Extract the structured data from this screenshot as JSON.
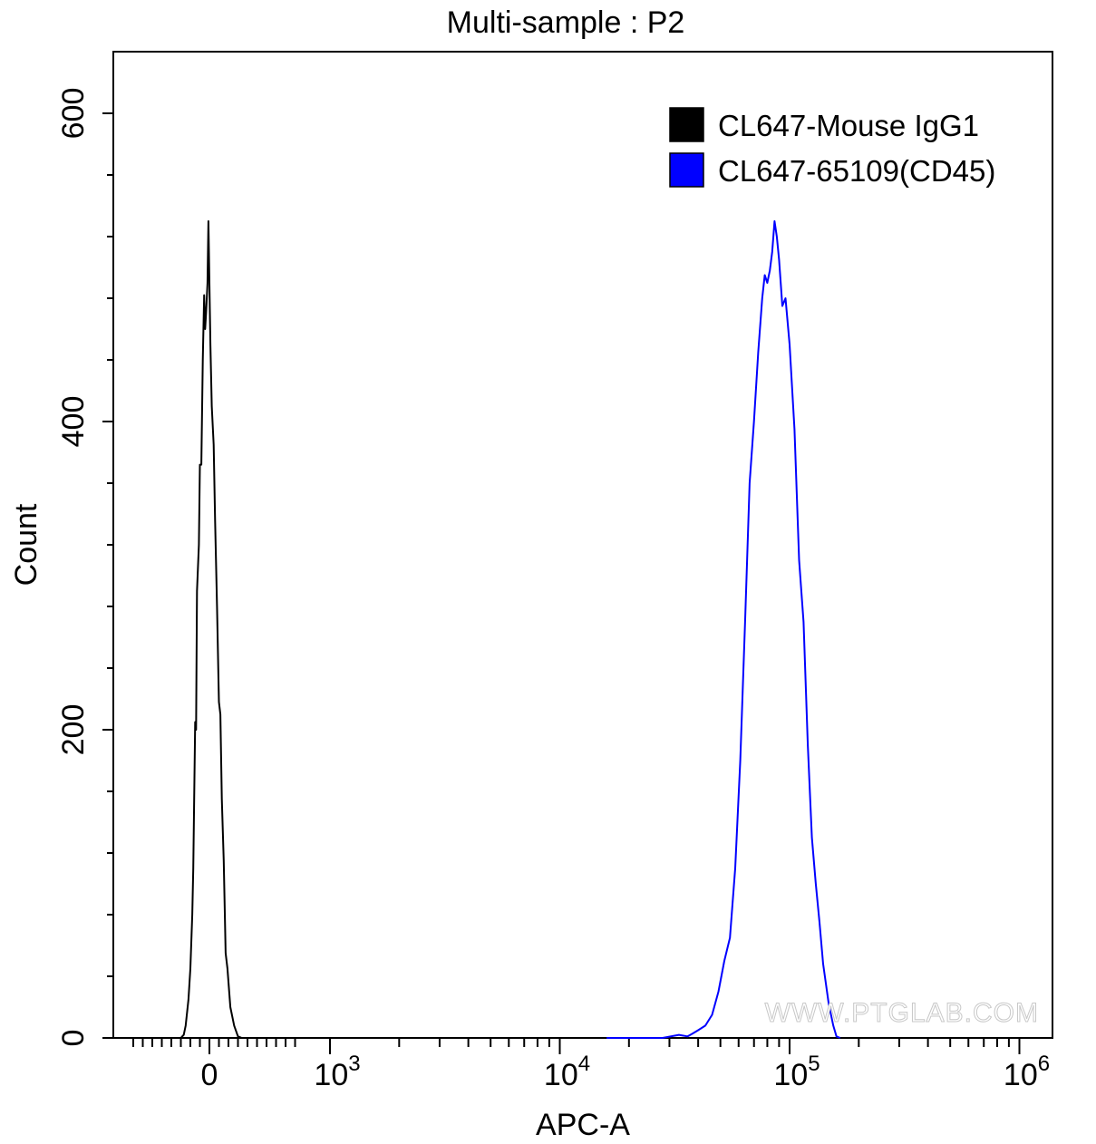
{
  "chart_data": {
    "type": "line",
    "title": "Multi-sample : P2",
    "xlabel": "APC-A",
    "ylabel": "Count",
    "x_scale": "biexponential",
    "x_ticks": [
      {
        "value": 0,
        "base": "0",
        "exp": ""
      },
      {
        "value": 1000,
        "base": "10",
        "exp": "3"
      },
      {
        "value": 10000,
        "base": "10",
        "exp": "4"
      },
      {
        "value": 100000,
        "base": "10",
        "exp": "5"
      },
      {
        "value": 1000000,
        "base": "10",
        "exp": "6"
      }
    ],
    "y_ticks": [
      0,
      200,
      400,
      600
    ],
    "ylim": [
      0,
      600
    ],
    "grid": false,
    "legend_position": "top-right",
    "watermark": "WWW.PTGLAB.COM",
    "series": [
      {
        "name": "CL647-Mouse IgG1",
        "color": "#000000",
        "points": [
          [
            -300,
            0
          ],
          [
            -270,
            2
          ],
          [
            -250,
            8
          ],
          [
            -220,
            25
          ],
          [
            -200,
            45
          ],
          [
            -180,
            80
          ],
          [
            -170,
            110
          ],
          [
            -150,
            205
          ],
          [
            -140,
            200
          ],
          [
            -130,
            290
          ],
          [
            -110,
            320
          ],
          [
            -100,
            372
          ],
          [
            -85,
            372
          ],
          [
            -70,
            440
          ],
          [
            -55,
            482
          ],
          [
            -45,
            460
          ],
          [
            -35,
            470
          ],
          [
            -20,
            490
          ],
          [
            -10,
            530
          ],
          [
            0,
            490
          ],
          [
            10,
            450
          ],
          [
            25,
            410
          ],
          [
            45,
            385
          ],
          [
            60,
            335
          ],
          [
            80,
            280
          ],
          [
            100,
            218
          ],
          [
            115,
            210
          ],
          [
            130,
            155
          ],
          [
            150,
            115
          ],
          [
            170,
            55
          ],
          [
            190,
            45
          ],
          [
            220,
            20
          ],
          [
            260,
            8
          ],
          [
            300,
            1
          ],
          [
            340,
            0
          ]
        ]
      },
      {
        "name": "CL647-65109(CD45)",
        "color": "#0000ff",
        "points": [
          [
            16000,
            0
          ],
          [
            28000,
            0
          ],
          [
            33000,
            2
          ],
          [
            36000,
            1
          ],
          [
            38000,
            3
          ],
          [
            40000,
            5
          ],
          [
            43000,
            8
          ],
          [
            46000,
            15
          ],
          [
            49000,
            30
          ],
          [
            52000,
            50
          ],
          [
            55000,
            65
          ],
          [
            58000,
            110
          ],
          [
            61000,
            180
          ],
          [
            64000,
            270
          ],
          [
            67000,
            360
          ],
          [
            70000,
            400
          ],
          [
            73000,
            445
          ],
          [
            76000,
            480
          ],
          [
            78000,
            495
          ],
          [
            80000,
            490
          ],
          [
            82000,
            498
          ],
          [
            84000,
            510
          ],
          [
            86000,
            530
          ],
          [
            88000,
            520
          ],
          [
            90000,
            505
          ],
          [
            93000,
            475
          ],
          [
            96000,
            480
          ],
          [
            100000,
            450
          ],
          [
            105000,
            395
          ],
          [
            110000,
            310
          ],
          [
            115000,
            270
          ],
          [
            120000,
            190
          ],
          [
            125000,
            130
          ],
          [
            130000,
            100
          ],
          [
            135000,
            75
          ],
          [
            140000,
            48
          ],
          [
            148000,
            22
          ],
          [
            155000,
            8
          ],
          [
            160000,
            1
          ],
          [
            166000,
            0
          ]
        ]
      }
    ]
  }
}
